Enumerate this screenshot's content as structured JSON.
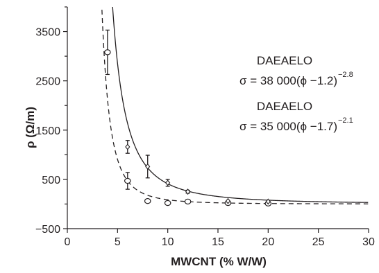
{
  "chart_data": {
    "type": "scatter",
    "xlabel": "MWCNT (% W/W)",
    "ylabel": "ρ (Ω/m)",
    "xlim": [
      0,
      30
    ],
    "ylim": [
      -500,
      4000
    ],
    "xticks": [
      0,
      5,
      10,
      15,
      20,
      25,
      30
    ],
    "yticks": [
      -500,
      500,
      1500,
      2500,
      3500
    ],
    "grid": false,
    "legend": "none",
    "series": [
      {
        "marker": "circle",
        "line": "solid",
        "fit": {
          "a": 35000,
          "phi_c": 1.7,
          "t": 2.1
        },
        "points": [
          {
            "x": 4,
            "y": 3080,
            "err": 450
          },
          {
            "x": 6,
            "y": 470,
            "err": 170
          },
          {
            "x": 8,
            "y": 60,
            "err": 0
          },
          {
            "x": 10,
            "y": 20,
            "err": 0
          },
          {
            "x": 12,
            "y": 50,
            "err": 0
          },
          {
            "x": 16,
            "y": 20,
            "err": 0
          },
          {
            "x": 20,
            "y": 10,
            "err": 0
          }
        ]
      },
      {
        "marker": "diamond",
        "line": "dashed",
        "fit": {
          "a": 38000,
          "phi_c": 1.2,
          "t": 2.8
        },
        "points": [
          {
            "x": 6,
            "y": 1160,
            "err": 130
          },
          {
            "x": 8,
            "y": 760,
            "err": 230
          },
          {
            "x": 10,
            "y": 430,
            "err": 70
          },
          {
            "x": 12,
            "y": 250,
            "err": 30
          },
          {
            "x": 16,
            "y": 60,
            "err": 0
          },
          {
            "x": 20,
            "y": 50,
            "err": 0
          }
        ]
      }
    ],
    "annotations": [
      {
        "name": "DAEAELO",
        "formula_main": "σ = 38 000(ϕ −1.2)",
        "exponent": "−2.8"
      },
      {
        "name": "DAEAELO",
        "formula_main": "σ = 35 000(ϕ −1.7)",
        "exponent": "−2.1"
      }
    ],
    "colors": {
      "ink": "#231f20",
      "background": "#ffffff"
    }
  }
}
